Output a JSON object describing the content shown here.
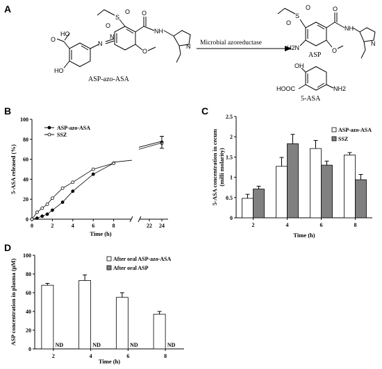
{
  "panels": {
    "a": "A",
    "b": "B",
    "c": "C",
    "d": "D"
  },
  "scheme": {
    "reactant": "ASP-azo-ASA",
    "arrow_label": "Microbial azoreductase",
    "product1": "ASP",
    "product2": "5-ASA",
    "atoms": {
      "o": "O",
      "oh": "OH",
      "ho": "HO",
      "hooc": "HOOC",
      "nh": "NH",
      "n": "N",
      "s": "S",
      "h2n": "H2N",
      "nh2": "NH2"
    }
  },
  "chart_data": [
    {
      "panel": "B",
      "type": "line",
      "xlabel": "Time (h)",
      "ylabel": "5-ASA released (%)",
      "ylim": [
        0,
        100
      ],
      "yticks": [
        0,
        20,
        40,
        60,
        80,
        100
      ],
      "xticks": [
        0,
        2,
        4,
        6,
        8,
        22,
        24
      ],
      "axis_break": true,
      "legend_position": "top-left",
      "series": [
        {
          "name": "ASP-azo-ASA",
          "marker": "filled-circle",
          "x": [
            0,
            0.5,
            1,
            1.5,
            2,
            3,
            4,
            6,
            8,
            24
          ],
          "y": [
            0,
            1,
            3,
            5,
            9,
            17,
            28,
            45,
            56,
            77
          ]
        },
        {
          "name": "SSZ",
          "marker": "open-circle",
          "x": [
            0,
            0.5,
            1,
            1.5,
            2,
            3,
            4,
            6,
            8,
            24
          ],
          "y": [
            0,
            7,
            11,
            15,
            21,
            31,
            37,
            50,
            56,
            76
          ]
        }
      ]
    },
    {
      "panel": "C",
      "type": "bar",
      "xlabel": "Time (h)",
      "ylabel": "5-ASA concentration in cecum",
      "ylabel2": "(milli molarity)",
      "categories": [
        "2",
        "4",
        "6",
        "8"
      ],
      "ylim": [
        0,
        2.5
      ],
      "yticks": [
        "0",
        "0.5",
        "1",
        "1.5",
        "2",
        "2.5"
      ],
      "legend_position": "top-right",
      "series": [
        {
          "name": "ASP-azo-ASA",
          "color": "#ffffff",
          "values": [
            0.48,
            1.27,
            1.71,
            1.55
          ],
          "errors": [
            0.1,
            0.22,
            0.2,
            0.06
          ]
        },
        {
          "name": "SSZ",
          "color": "#808080",
          "values": [
            0.71,
            1.83,
            1.3,
            0.94
          ],
          "errors": [
            0.07,
            0.23,
            0.1,
            0.13
          ]
        }
      ]
    },
    {
      "panel": "D",
      "type": "bar",
      "xlabel": "Time (h)",
      "ylabel": "ASP concentration in plasma (μM)",
      "categories": [
        "2",
        "4",
        "6",
        "8"
      ],
      "ylim": [
        0,
        100
      ],
      "yticks": [
        0,
        20,
        40,
        60,
        80,
        100
      ],
      "legend_position": "top-right",
      "not_detected_label": "ND",
      "series": [
        {
          "name": "After oral ASP-azo-ASA",
          "color": "#ffffff",
          "values": [
            68,
            73,
            55,
            37
          ],
          "errors": [
            2,
            6,
            5,
            3
          ]
        },
        {
          "name": "After oral ASP",
          "color": "#808080",
          "values": [
            0,
            0,
            0,
            0
          ],
          "errors": [
            0,
            0,
            0,
            0
          ]
        }
      ]
    }
  ]
}
